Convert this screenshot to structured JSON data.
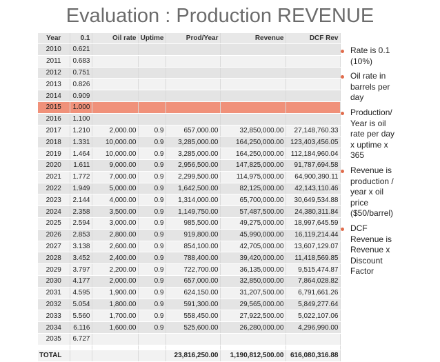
{
  "title": "Evaluation : Production REVENUE",
  "table": {
    "headers": [
      "Year",
      "0.1",
      "Oil rate",
      "Uptime",
      "Prod/Year",
      "Revenue",
      "DCF Rev"
    ],
    "rows": [
      [
        "2010",
        "0.621",
        "",
        "",
        "",
        "",
        ""
      ],
      [
        "2011",
        "0.683",
        "",
        "",
        "",
        "",
        ""
      ],
      [
        "2012",
        "0.751",
        "",
        "",
        "",
        "",
        ""
      ],
      [
        "2013",
        "0.826",
        "",
        "",
        "",
        "",
        ""
      ],
      [
        "2014",
        "0.909",
        "",
        "",
        "",
        "",
        ""
      ],
      [
        "2015",
        "1.000",
        "",
        "",
        "",
        "",
        ""
      ],
      [
        "2016",
        "1.100",
        "",
        "",
        "",
        "",
        ""
      ],
      [
        "2017",
        "1.210",
        "2,000.00",
        "0.9",
        "657,000.00",
        "32,850,000.00",
        "27,148,760.33"
      ],
      [
        "2018",
        "1.331",
        "10,000.00",
        "0.9",
        "3,285,000.00",
        "164,250,000.00",
        "123,403,456.05"
      ],
      [
        "2019",
        "1.464",
        "10,000.00",
        "0.9",
        "3,285,000.00",
        "164,250,000.00",
        "112,184,960.04"
      ],
      [
        "2020",
        "1.611",
        "9,000.00",
        "0.9",
        "2,956,500.00",
        "147,825,000.00",
        "91,787,694.58"
      ],
      [
        "2021",
        "1.772",
        "7,000.00",
        "0.9",
        "2,299,500.00",
        "114,975,000.00",
        "64,900,390.11"
      ],
      [
        "2022",
        "1.949",
        "5,000.00",
        "0.9",
        "1,642,500.00",
        "82,125,000.00",
        "42,143,110.46"
      ],
      [
        "2023",
        "2.144",
        "4,000.00",
        "0.9",
        "1,314,000.00",
        "65,700,000.00",
        "30,649,534.88"
      ],
      [
        "2024",
        "2.358",
        "3,500.00",
        "0.9",
        "1,149,750.00",
        "57,487,500.00",
        "24,380,311.84"
      ],
      [
        "2025",
        "2.594",
        "3,000.00",
        "0.9",
        "985,500.00",
        "49,275,000.00",
        "18,997,645.59"
      ],
      [
        "2026",
        "2.853",
        "2,800.00",
        "0.9",
        "919,800.00",
        "45,990,000.00",
        "16,119,214.44"
      ],
      [
        "2027",
        "3.138",
        "2,600.00",
        "0.9",
        "854,100.00",
        "42,705,000.00",
        "13,607,129.07"
      ],
      [
        "2028",
        "3.452",
        "2,400.00",
        "0.9",
        "788,400.00",
        "39,420,000.00",
        "11,418,569.85"
      ],
      [
        "2029",
        "3.797",
        "2,200.00",
        "0.9",
        "722,700.00",
        "36,135,000.00",
        "9,515,474.87"
      ],
      [
        "2030",
        "4.177",
        "2,000.00",
        "0.9",
        "657,000.00",
        "32,850,000.00",
        "7,864,028.82"
      ],
      [
        "2031",
        "4.595",
        "1,900.00",
        "0.9",
        "624,150.00",
        "31,207,500.00",
        "6,791,661.26"
      ],
      [
        "2032",
        "5.054",
        "1,800.00",
        "0.9",
        "591,300.00",
        "29,565,000.00",
        "5,849,277.64"
      ],
      [
        "2033",
        "5.560",
        "1,700.00",
        "0.9",
        "558,450.00",
        "27,922,500.00",
        "5,022,107.06"
      ],
      [
        "2034",
        "6.116",
        "1,600.00",
        "0.9",
        "525,600.00",
        "26,280,000.00",
        "4,296,990.00"
      ],
      [
        "2035",
        "6.727",
        "",
        "",
        "",
        "",
        ""
      ]
    ],
    "highlight_year": "2015",
    "total": [
      "TOTAL",
      "",
      "",
      "",
      "23,816,250.00",
      "1,190,812,500.00",
      "616,080,316.88"
    ]
  },
  "bullets": [
    "Rate is 0.1 (10%)",
    "Oil rate in barrels per day",
    "Production/ Year is oil rate per day x uptime x 365",
    "Revenue is production / year x oil price ($50/barrel)",
    "DCF Revenue is Revenue x Discount Factor"
  ],
  "colors": {
    "highlight": "#f0917a",
    "bullet": "#e06c4c",
    "title": "#6b6b6b"
  }
}
